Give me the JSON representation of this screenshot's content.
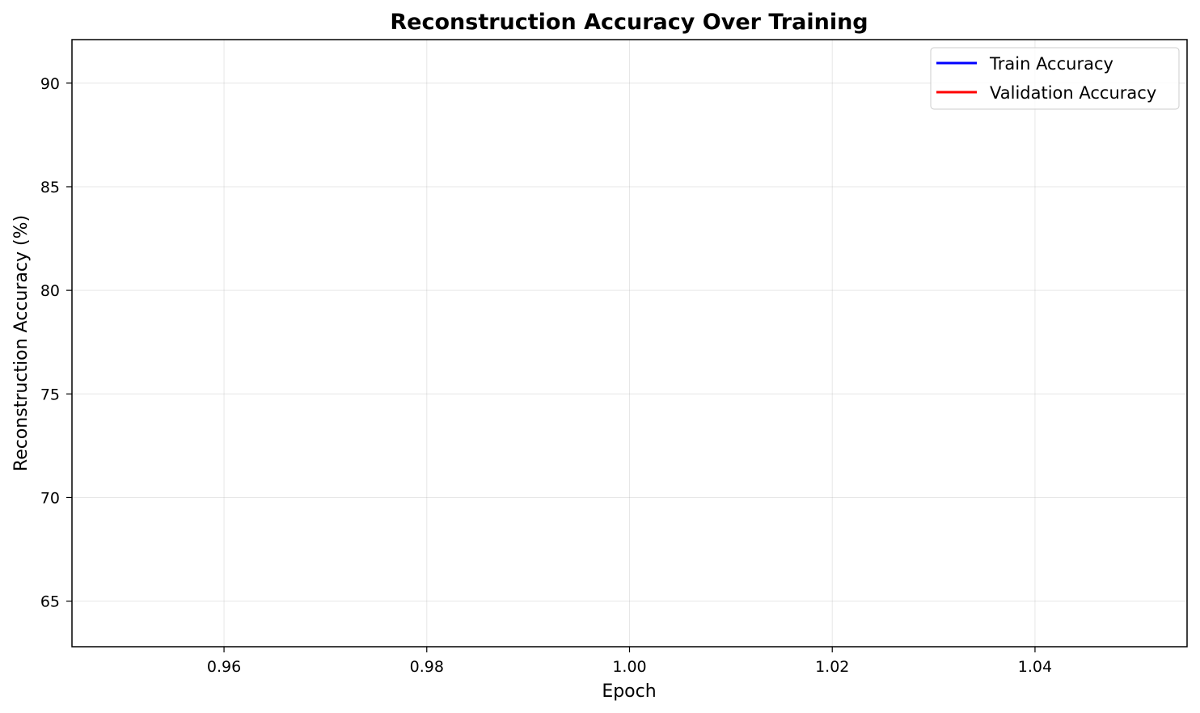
{
  "chart_data": {
    "type": "line",
    "title": "Reconstruction Accuracy Over Training",
    "xlabel": "Epoch",
    "ylabel": "Reconstruction Accuracy (%)",
    "xlim": [
      0.945,
      1.055
    ],
    "ylim": [
      62.8,
      92.1
    ],
    "x_ticks": [
      0.96,
      0.98,
      1.0,
      1.02,
      1.04
    ],
    "x_tick_labels": [
      "0.96",
      "0.98",
      "1.00",
      "1.02",
      "1.04"
    ],
    "y_ticks": [
      65,
      70,
      75,
      80,
      85,
      90
    ],
    "y_tick_labels": [
      "65",
      "70",
      "75",
      "80",
      "85",
      "90"
    ],
    "grid": true,
    "legend_position": "top-right",
    "series": [
      {
        "name": "Train Accuracy",
        "color": "#0000ff",
        "x": [],
        "y": []
      },
      {
        "name": "Validation Accuracy",
        "color": "#ff0000",
        "x": [],
        "y": []
      }
    ]
  }
}
